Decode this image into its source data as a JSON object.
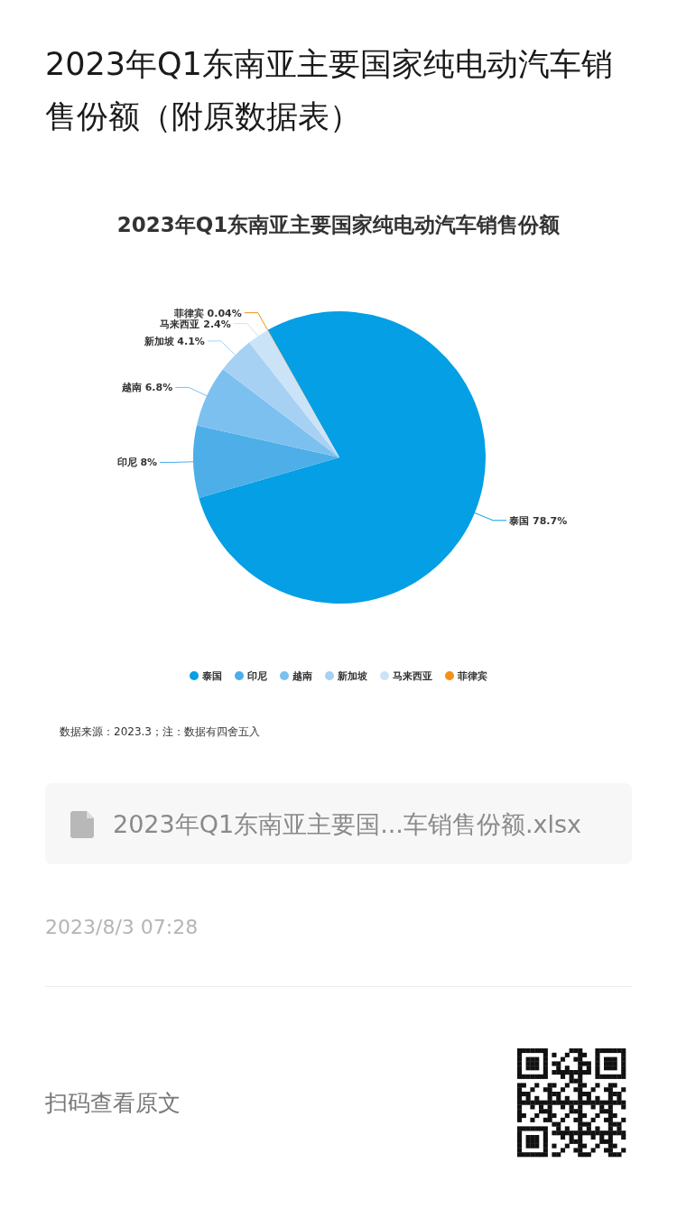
{
  "chart_data": {
    "type": "pie",
    "title": "2023年Q1东南亚主要国家纯电动汽车销售份额（附原数据表）",
    "subtitle": "2023年Q1东南亚主要国家纯电动汽车销售份额",
    "categories": [
      "泰国",
      "印尼",
      "越南",
      "新加坡",
      "马来西亚",
      "菲律宾"
    ],
    "values": [
      78.7,
      8,
      6.8,
      4.1,
      2.4,
      0.04
    ],
    "colors": [
      "#049fe4",
      "#4daee8",
      "#7cc0ef",
      "#a7d1f3",
      "#cbe3f7",
      "#f39019"
    ],
    "value_labels": [
      "78.7%",
      "8%",
      "6.8%",
      "4.1%",
      "2.4%",
      "0.04%"
    ],
    "legend": "bottom",
    "annotations": [
      "数据来源：2023.3；注：数据有四舍五入",
      "2023年Q1东南亚主要国...车销售份额.xlsx",
      "2023/8/3 07:28",
      "扫码查看原文"
    ]
  }
}
